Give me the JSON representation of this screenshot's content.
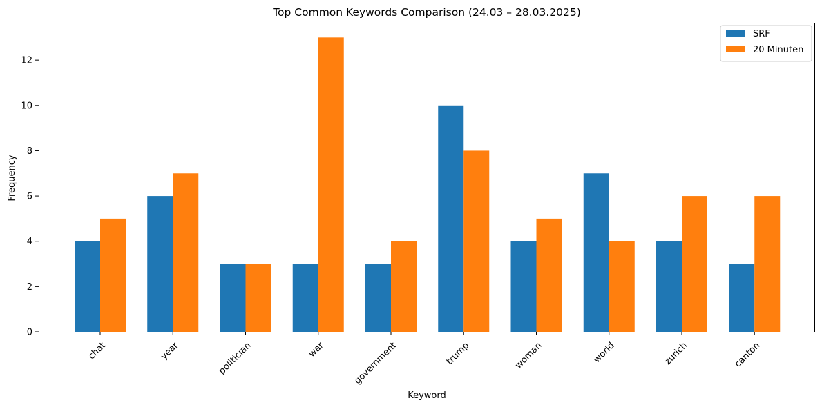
{
  "chart_data": {
    "type": "bar",
    "title": "Top Common Keywords Comparison (24.03 – 28.03.2025)",
    "xlabel": "Keyword",
    "ylabel": "Frequency",
    "categories": [
      "chat",
      "year",
      "politician",
      "war",
      "government",
      "trump",
      "woman",
      "world",
      "zurich",
      "canton"
    ],
    "series": [
      {
        "name": "SRF",
        "color": "#1f77b4",
        "values": [
          4,
          6,
          3,
          3,
          3,
          10,
          4,
          7,
          4,
          3
        ]
      },
      {
        "name": "20 Minuten",
        "color": "#ff7f0e",
        "values": [
          5,
          7,
          3,
          13,
          4,
          8,
          5,
          4,
          6,
          6
        ]
      }
    ],
    "ylim": [
      0,
      13.65
    ],
    "yticks": [
      0,
      2,
      4,
      6,
      8,
      10,
      12
    ],
    "grid": false,
    "legend_position": "top-right"
  }
}
